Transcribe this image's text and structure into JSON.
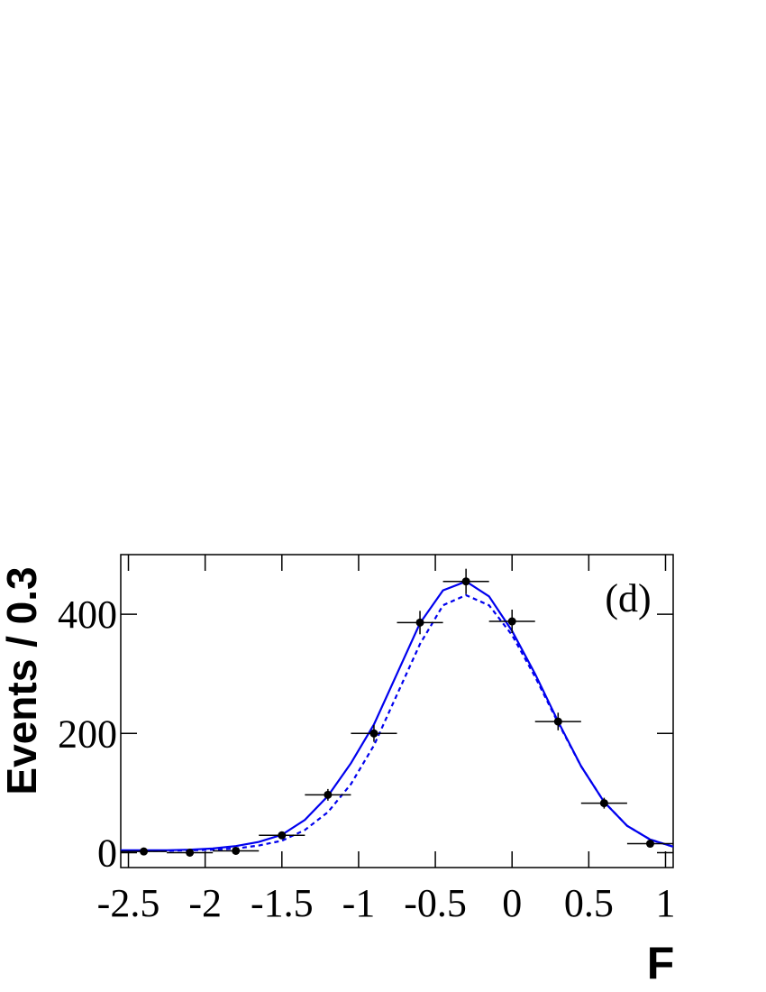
{
  "chart_data": {
    "type": "histogram",
    "xlabel": "F",
    "ylabel": "Events / 0.3",
    "annotation": "(d)",
    "bins": [
      -2.55,
      -2.25,
      -1.95,
      -1.65,
      -1.35,
      -1.05,
      -0.75,
      -0.45,
      -0.15,
      0.15,
      0.45,
      0.75,
      1.05
    ],
    "values": [
      2,
      0,
      3,
      29,
      97,
      200,
      386,
      455,
      388,
      220,
      83,
      15
    ],
    "errors": [
      1.4,
      1,
      1.7,
      5.4,
      9.8,
      14.1,
      19.6,
      21.3,
      19.7,
      14.8,
      9.1,
      3.9
    ],
    "color": "#000000",
    "curves": {
      "x": [
        -2.55,
        -2.4,
        -2.25,
        -2.1,
        -1.95,
        -1.8,
        -1.65,
        -1.5,
        -1.35,
        -1.2,
        -1.05,
        -0.9,
        -0.75,
        -0.6,
        -0.45,
        -0.3,
        -0.15,
        0,
        0.15,
        0.3,
        0.45,
        0.6,
        0.75,
        0.9,
        1.05
      ],
      "series": [
        {
          "style": "solid",
          "color": "#0000ee",
          "values": [
            4,
            4,
            4,
            5,
            7,
            11,
            18,
            30,
            55,
            95,
            150,
            215,
            300,
            385,
            440,
            455,
            430,
            372,
            300,
            220,
            145,
            85,
            45,
            22,
            10
          ]
        },
        {
          "style": "dashed",
          "color": "#0000ee",
          "values": [
            3,
            3,
            3,
            4,
            5,
            7,
            12,
            20,
            38,
            68,
            115,
            180,
            265,
            350,
            415,
            432,
            415,
            365,
            295,
            218,
            145,
            85,
            45,
            22,
            10
          ]
        }
      ]
    },
    "xlim": [
      -2.55,
      1.05
    ],
    "ylim": [
      -25,
      500
    ],
    "xticks": [
      -2.5,
      -2,
      -1.5,
      -1,
      -0.5,
      0,
      0.5,
      1
    ],
    "yticks": [
      0,
      200,
      400
    ]
  }
}
